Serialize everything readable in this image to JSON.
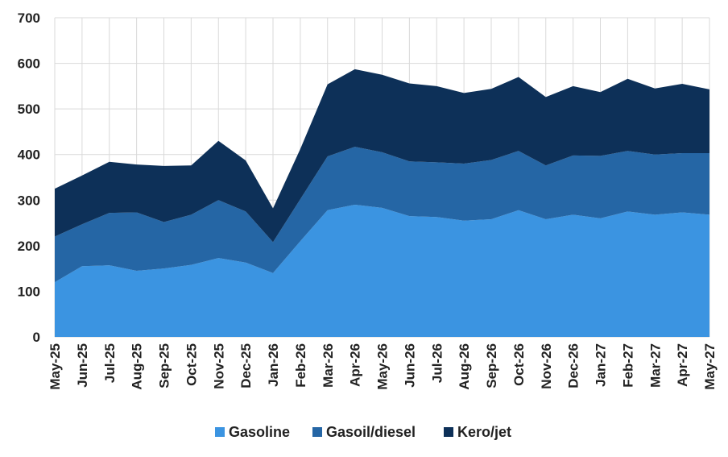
{
  "chart_data": {
    "type": "area",
    "stacked": true,
    "categories": [
      "May-25",
      "Jun-25",
      "Jul-25",
      "Aug-25",
      "Sep-25",
      "Oct-25",
      "Nov-25",
      "Dec-25",
      "Jan-26",
      "Feb-26",
      "Mar-26",
      "Apr-26",
      "May-26",
      "Jun-26",
      "Jul-26",
      "Aug-26",
      "Sep-26",
      "Oct-26",
      "Nov-26",
      "Dec-26",
      "Jan-27",
      "Feb-27",
      "Mar-27",
      "Apr-27",
      "May-27"
    ],
    "series": [
      {
        "name": "Gasoline",
        "color": "#3b94e1",
        "values": [
          120,
          155,
          157,
          145,
          150,
          158,
          173,
          163,
          140,
          210,
          278,
          290,
          283,
          265,
          263,
          255,
          258,
          278,
          258,
          268,
          260,
          275,
          268,
          273,
          268
        ]
      },
      {
        "name": "Gasoil/diesel",
        "color": "#2566a5",
        "values": [
          100,
          92,
          115,
          128,
          102,
          110,
          127,
          112,
          68,
          92,
          118,
          127,
          122,
          120,
          120,
          125,
          130,
          130,
          118,
          130,
          137,
          133,
          132,
          130,
          135
        ]
      },
      {
        "name": "Kero/jet",
        "color": "#0d3058",
        "values": [
          105,
          107,
          112,
          105,
          123,
          108,
          130,
          112,
          74,
          110,
          158,
          170,
          170,
          171,
          167,
          155,
          156,
          162,
          150,
          152,
          140,
          158,
          145,
          152,
          140
        ]
      }
    ],
    "ylim": [
      0,
      700
    ],
    "yticks": [
      "0",
      "100",
      "200",
      "300",
      "400",
      "500",
      "600",
      "700"
    ],
    "grid": true,
    "legend_position": "bottom",
    "title": "",
    "xlabel": "",
    "ylabel": ""
  }
}
